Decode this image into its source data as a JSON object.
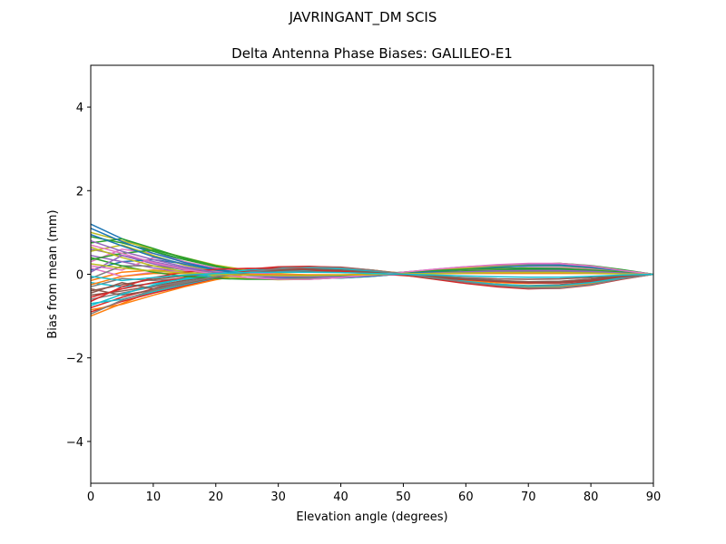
{
  "chart_data": {
    "type": "line",
    "suptitle": "JAVRINGANT_DM   SCIS",
    "title": "Delta Antenna Phase Biases: GALILEO-E1",
    "xlabel": "Elevation angle (degrees)",
    "ylabel": "Bias from mean (mm)",
    "xlim": [
      0,
      90
    ],
    "ylim": [
      -5,
      5
    ],
    "xticks": [
      0,
      10,
      20,
      30,
      40,
      50,
      60,
      70,
      80,
      90
    ],
    "yticks": [
      -4,
      -2,
      0,
      2,
      4
    ],
    "ytick_labels": [
      "−4",
      "−2",
      "0",
      "2",
      "4"
    ],
    "grid": false,
    "x": [
      0,
      5,
      10,
      15,
      20,
      25,
      30,
      35,
      40,
      45,
      50,
      55,
      60,
      65,
      70,
      75,
      80,
      85,
      90
    ],
    "colors": [
      "#1f77b4",
      "#ff7f0e",
      "#2ca02c",
      "#d62728",
      "#9467bd",
      "#8c564b",
      "#e377c2",
      "#7f7f7f",
      "#bcbd22",
      "#17becf"
    ],
    "series": [
      {
        "values": [
          1.2,
          0.85,
          0.55,
          0.3,
          0.12,
          0.02,
          -0.05,
          -0.08,
          -0.07,
          -0.03,
          0.03,
          0.08,
          0.1,
          0.12,
          0.13,
          0.13,
          0.1,
          0.05,
          0.0
        ]
      },
      {
        "values": [
          -1.0,
          -0.7,
          -0.4,
          -0.2,
          -0.05,
          0.08,
          0.15,
          0.17,
          0.14,
          0.07,
          0.0,
          -0.08,
          -0.15,
          -0.2,
          -0.22,
          -0.2,
          -0.14,
          -0.06,
          0.0
        ]
      },
      {
        "values": [
          0.9,
          0.75,
          0.55,
          0.35,
          0.18,
          0.05,
          -0.03,
          -0.06,
          -0.05,
          -0.02,
          0.02,
          0.06,
          0.1,
          0.16,
          0.22,
          0.25,
          0.2,
          0.1,
          0.0
        ]
      },
      {
        "values": [
          -0.8,
          -0.55,
          -0.35,
          -0.15,
          0.02,
          0.12,
          0.18,
          0.19,
          0.16,
          0.08,
          -0.02,
          -0.12,
          -0.22,
          -0.3,
          -0.35,
          -0.33,
          -0.24,
          -0.1,
          0.0
        ]
      },
      {
        "values": [
          0.6,
          0.45,
          0.25,
          0.1,
          0.0,
          -0.08,
          -0.12,
          -0.12,
          -0.08,
          -0.02,
          0.05,
          0.12,
          0.18,
          0.22,
          0.24,
          0.22,
          0.15,
          0.07,
          0.0
        ]
      },
      {
        "values": [
          -0.5,
          -0.4,
          -0.28,
          -0.15,
          -0.05,
          0.05,
          0.12,
          0.14,
          0.12,
          0.06,
          -0.02,
          -0.1,
          -0.18,
          -0.24,
          -0.27,
          -0.25,
          -0.18,
          -0.08,
          0.0
        ]
      },
      {
        "values": [
          0.3,
          0.6,
          0.5,
          0.3,
          0.15,
          0.05,
          -0.02,
          -0.05,
          -0.04,
          -0.01,
          0.03,
          0.05,
          0.07,
          0.09,
          0.1,
          0.1,
          0.08,
          0.04,
          0.0
        ]
      },
      {
        "values": [
          -0.3,
          -0.1,
          -0.15,
          -0.1,
          -0.05,
          0.02,
          0.08,
          0.1,
          0.09,
          0.05,
          0.0,
          -0.05,
          -0.1,
          -0.15,
          -0.18,
          -0.17,
          -0.12,
          -0.05,
          0.0
        ]
      },
      {
        "values": [
          1.0,
          0.8,
          0.6,
          0.4,
          0.22,
          0.1,
          0.02,
          -0.02,
          -0.02,
          0.0,
          0.03,
          0.07,
          0.12,
          0.18,
          0.24,
          0.26,
          0.2,
          0.1,
          0.0
        ]
      },
      {
        "values": [
          -0.7,
          -0.6,
          -0.42,
          -0.25,
          -0.1,
          0.03,
          0.12,
          0.16,
          0.14,
          0.08,
          0.0,
          -0.09,
          -0.18,
          -0.26,
          -0.32,
          -0.32,
          -0.24,
          -0.11,
          0.0
        ]
      },
      {
        "values": [
          0.1,
          0.3,
          0.35,
          0.25,
          0.12,
          0.02,
          -0.05,
          -0.08,
          -0.07,
          -0.03,
          0.02,
          0.06,
          0.09,
          0.11,
          0.12,
          0.11,
          0.08,
          0.04,
          0.0
        ]
      },
      {
        "values": [
          -0.15,
          0.05,
          0.1,
          0.05,
          0.0,
          -0.03,
          -0.05,
          -0.04,
          -0.02,
          0.0,
          0.02,
          0.03,
          0.04,
          0.05,
          0.05,
          0.05,
          0.04,
          0.02,
          0.0
        ]
      },
      {
        "values": [
          0.75,
          0.85,
          0.62,
          0.38,
          0.2,
          0.06,
          -0.04,
          -0.09,
          -0.09,
          -0.05,
          0.01,
          0.07,
          0.13,
          0.19,
          0.24,
          0.26,
          0.21,
          0.11,
          0.0
        ]
      },
      {
        "values": [
          -0.9,
          -0.65,
          -0.45,
          -0.28,
          -0.12,
          0.02,
          0.12,
          0.18,
          0.17,
          0.1,
          0.01,
          -0.09,
          -0.19,
          -0.28,
          -0.34,
          -0.34,
          -0.26,
          -0.12,
          0.0
        ]
      },
      {
        "values": [
          0.45,
          0.3,
          0.15,
          0.05,
          -0.03,
          -0.08,
          -0.1,
          -0.08,
          -0.05,
          -0.01,
          0.03,
          0.06,
          0.08,
          0.1,
          0.1,
          0.09,
          0.07,
          0.03,
          0.0
        ]
      },
      {
        "values": [
          -0.4,
          -0.25,
          -0.12,
          -0.04,
          0.02,
          0.06,
          0.08,
          0.08,
          0.06,
          0.03,
          -0.01,
          -0.05,
          -0.08,
          -0.11,
          -0.12,
          -0.11,
          -0.08,
          -0.04,
          0.0
        ]
      },
      {
        "values": [
          0.2,
          0.1,
          0.4,
          0.25,
          0.1,
          0.0,
          -0.06,
          -0.09,
          -0.08,
          -0.04,
          0.01,
          0.05,
          0.09,
          0.13,
          0.16,
          0.16,
          0.12,
          0.06,
          0.0
        ]
      },
      {
        "values": [
          -0.6,
          -0.45,
          -0.3,
          -0.18,
          -0.08,
          0.0,
          0.06,
          0.1,
          0.11,
          0.08,
          0.03,
          -0.03,
          -0.09,
          -0.15,
          -0.19,
          -0.19,
          -0.14,
          -0.06,
          0.0
        ]
      },
      {
        "values": [
          0.55,
          0.7,
          0.45,
          0.22,
          0.08,
          -0.02,
          -0.08,
          -0.1,
          -0.08,
          -0.03,
          0.03,
          0.08,
          0.13,
          0.17,
          0.2,
          0.2,
          0.15,
          0.07,
          0.0
        ]
      },
      {
        "values": [
          -0.2,
          -0.3,
          -0.22,
          -0.12,
          -0.03,
          0.04,
          0.09,
          0.11,
          0.1,
          0.06,
          0.0,
          -0.06,
          -0.12,
          -0.17,
          -0.2,
          -0.19,
          -0.14,
          -0.06,
          0.0
        ]
      },
      {
        "values": [
          1.1,
          0.78,
          0.5,
          0.28,
          0.12,
          0.01,
          -0.06,
          -0.09,
          -0.08,
          -0.04,
          0.02,
          0.08,
          0.13,
          0.18,
          0.22,
          0.23,
          0.18,
          0.09,
          0.0
        ]
      },
      {
        "values": [
          -0.85,
          -0.72,
          -0.5,
          -0.3,
          -0.13,
          0.0,
          0.1,
          0.15,
          0.15,
          0.1,
          0.02,
          -0.07,
          -0.16,
          -0.24,
          -0.29,
          -0.29,
          -0.22,
          -0.1,
          0.0
        ]
      },
      {
        "values": [
          0.35,
          0.5,
          0.58,
          0.4,
          0.2,
          0.05,
          -0.05,
          -0.09,
          -0.08,
          -0.04,
          0.01,
          0.05,
          0.08,
          0.1,
          0.11,
          0.1,
          0.07,
          0.03,
          0.0
        ]
      },
      {
        "values": [
          -0.55,
          -0.35,
          -0.2,
          -0.08,
          0.02,
          0.08,
          0.12,
          0.13,
          0.11,
          0.06,
          0.0,
          -0.06,
          -0.12,
          -0.17,
          -0.21,
          -0.21,
          -0.16,
          -0.07,
          0.0
        ]
      },
      {
        "values": [
          0.8,
          0.55,
          0.35,
          0.18,
          0.06,
          -0.03,
          -0.08,
          -0.09,
          -0.06,
          -0.01,
          0.05,
          0.11,
          0.17,
          0.22,
          0.25,
          0.25,
          0.19,
          0.09,
          0.0
        ]
      },
      {
        "values": [
          -0.35,
          -0.5,
          -0.38,
          -0.22,
          -0.08,
          0.02,
          0.09,
          0.12,
          0.11,
          0.07,
          0.01,
          -0.05,
          -0.11,
          -0.16,
          -0.2,
          -0.2,
          -0.15,
          -0.07,
          0.0
        ]
      },
      {
        "values": [
          0.15,
          -0.05,
          0.05,
          0.08,
          0.06,
          0.03,
          0.0,
          -0.02,
          -0.03,
          -0.02,
          0.0,
          0.02,
          0.04,
          0.05,
          0.06,
          0.06,
          0.05,
          0.02,
          0.0
        ]
      },
      {
        "values": [
          -0.1,
          0.2,
          0.2,
          0.12,
          0.04,
          -0.01,
          -0.04,
          -0.05,
          -0.04,
          -0.02,
          0.01,
          0.03,
          0.05,
          0.06,
          0.07,
          0.07,
          0.05,
          0.02,
          0.0
        ]
      },
      {
        "values": [
          0.65,
          0.4,
          0.2,
          0.06,
          -0.04,
          -0.1,
          -0.13,
          -0.12,
          -0.08,
          -0.02,
          0.04,
          0.1,
          0.15,
          0.19,
          0.21,
          0.21,
          0.16,
          0.08,
          0.0
        ]
      },
      {
        "values": [
          -0.75,
          -0.48,
          -0.26,
          -0.1,
          0.02,
          0.1,
          0.15,
          0.16,
          0.13,
          0.07,
          -0.01,
          -0.09,
          -0.17,
          -0.24,
          -0.28,
          -0.27,
          -0.2,
          -0.09,
          0.0
        ]
      },
      {
        "values": [
          0.95,
          0.68,
          0.42,
          0.24,
          0.1,
          0.0,
          -0.07,
          -0.1,
          -0.09,
          -0.05,
          0.01,
          0.07,
          0.12,
          0.17,
          0.2,
          0.21,
          0.16,
          0.08,
          0.0
        ]
      },
      {
        "values": [
          -0.25,
          -0.05,
          0.02,
          0.02,
          0.01,
          0.0,
          -0.01,
          -0.01,
          -0.01,
          0.0,
          0.01,
          0.01,
          0.02,
          0.02,
          0.02,
          0.02,
          0.02,
          0.01,
          0.0
        ]
      },
      {
        "values": [
          0.4,
          0.2,
          0.05,
          -0.05,
          -0.1,
          -0.12,
          -0.12,
          -0.09,
          -0.05,
          0.0,
          0.05,
          0.09,
          0.12,
          0.14,
          0.15,
          0.14,
          0.1,
          0.05,
          0.0
        ]
      },
      {
        "values": [
          -0.65,
          -0.3,
          -0.08,
          0.05,
          0.12,
          0.14,
          0.14,
          0.11,
          0.07,
          0.02,
          -0.03,
          -0.08,
          -0.13,
          -0.17,
          -0.19,
          -0.18,
          -0.13,
          -0.06,
          0.0
        ]
      },
      {
        "values": [
          0.05,
          0.45,
          0.3,
          0.15,
          0.05,
          -0.02,
          -0.06,
          -0.07,
          -0.06,
          -0.03,
          0.0,
          0.03,
          0.06,
          0.08,
          0.09,
          0.09,
          0.07,
          0.03,
          0.0
        ]
      },
      {
        "values": [
          -0.45,
          -0.2,
          -0.35,
          -0.2,
          -0.06,
          0.04,
          0.1,
          0.12,
          0.1,
          0.05,
          -0.01,
          -0.07,
          -0.12,
          -0.16,
          -0.18,
          -0.17,
          -0.12,
          -0.05,
          0.0
        ]
      },
      {
        "values": [
          0.7,
          0.5,
          0.28,
          0.12,
          0.0,
          -0.08,
          -0.12,
          -0.12,
          -0.08,
          -0.02,
          0.05,
          0.12,
          0.18,
          0.23,
          0.26,
          0.26,
          0.2,
          0.09,
          0.0
        ]
      },
      {
        "values": [
          -0.95,
          -0.62,
          -0.38,
          -0.2,
          -0.06,
          0.05,
          0.13,
          0.17,
          0.16,
          0.1,
          0.01,
          -0.09,
          -0.19,
          -0.27,
          -0.33,
          -0.33,
          -0.25,
          -0.11,
          0.0
        ]
      },
      {
        "values": [
          0.25,
          0.15,
          0.08,
          0.03,
          0.0,
          -0.02,
          -0.03,
          -0.03,
          -0.02,
          -0.01,
          0.01,
          0.02,
          0.03,
          0.04,
          0.04,
          0.04,
          0.03,
          0.01,
          0.0
        ]
      },
      {
        "values": [
          -0.05,
          -0.15,
          -0.08,
          -0.02,
          0.02,
          0.04,
          0.05,
          0.05,
          0.04,
          0.02,
          0.0,
          -0.02,
          -0.04,
          -0.06,
          -0.07,
          -0.07,
          -0.05,
          -0.02,
          0.0
        ]
      }
    ]
  }
}
